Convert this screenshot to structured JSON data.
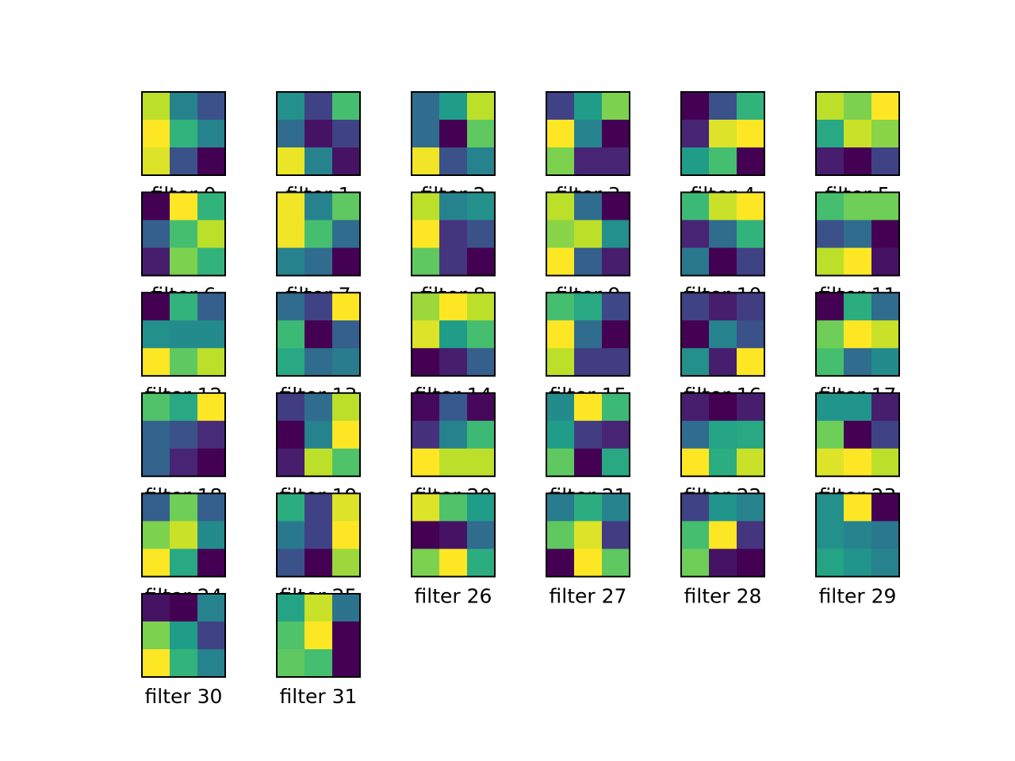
{
  "chart_data": {
    "type": "heatmap",
    "colormap": "viridis",
    "title": "",
    "grid": false,
    "axes_visible": false,
    "layout": {
      "rows": 6,
      "cols": 6
    },
    "filters": [
      {
        "label": "filter 0",
        "values": [
          [
            0.9,
            0.45,
            0.25
          ],
          [
            1.0,
            0.65,
            0.45
          ],
          [
            0.95,
            0.25,
            0.0
          ]
        ]
      },
      {
        "label": "filter 1",
        "values": [
          [
            0.5,
            0.2,
            0.7
          ],
          [
            0.35,
            0.05,
            0.2
          ],
          [
            0.97,
            0.45,
            0.05
          ]
        ]
      },
      {
        "label": "filter 2",
        "values": [
          [
            0.35,
            0.55,
            0.9
          ],
          [
            0.35,
            0.0,
            0.75
          ],
          [
            0.98,
            0.25,
            0.45
          ]
        ]
      },
      {
        "label": "filter 3",
        "values": [
          [
            0.2,
            0.55,
            0.8
          ],
          [
            1.0,
            0.45,
            0.0
          ],
          [
            0.8,
            0.1,
            0.1
          ]
        ]
      },
      {
        "label": "filter 4",
        "values": [
          [
            0.0,
            0.25,
            0.65
          ],
          [
            0.1,
            0.95,
            1.0
          ],
          [
            0.55,
            0.7,
            0.0
          ]
        ]
      },
      {
        "label": "filter 5",
        "values": [
          [
            0.9,
            0.8,
            1.0
          ],
          [
            0.6,
            0.92,
            0.82
          ],
          [
            0.08,
            0.0,
            0.2
          ]
        ]
      },
      {
        "label": "filter 6",
        "values": [
          [
            0.0,
            1.0,
            0.65
          ],
          [
            0.3,
            0.7,
            0.9
          ],
          [
            0.08,
            0.8,
            0.65
          ]
        ]
      },
      {
        "label": "filter 7",
        "values": [
          [
            0.98,
            0.45,
            0.75
          ],
          [
            0.98,
            0.7,
            0.35
          ],
          [
            0.45,
            0.35,
            0.0
          ]
        ]
      },
      {
        "label": "filter 8",
        "values": [
          [
            0.9,
            0.45,
            0.5
          ],
          [
            1.0,
            0.15,
            0.25
          ],
          [
            0.75,
            0.15,
            0.0
          ]
        ]
      },
      {
        "label": "filter 9",
        "values": [
          [
            0.9,
            0.35,
            0.0
          ],
          [
            0.82,
            0.9,
            0.5
          ],
          [
            1.0,
            0.3,
            0.08
          ]
        ]
      },
      {
        "label": "filter 10",
        "values": [
          [
            0.68,
            0.92,
            1.0
          ],
          [
            0.1,
            0.35,
            0.65
          ],
          [
            0.4,
            0.0,
            0.2
          ]
        ]
      },
      {
        "label": "filter 11",
        "values": [
          [
            0.7,
            0.78,
            0.78
          ],
          [
            0.25,
            0.35,
            0.0
          ],
          [
            0.9,
            1.0,
            0.05
          ]
        ]
      },
      {
        "label": "filter 12",
        "values": [
          [
            0.0,
            0.65,
            0.3
          ],
          [
            0.5,
            0.48,
            0.48
          ],
          [
            1.0,
            0.75,
            0.9
          ]
        ]
      },
      {
        "label": "filter 13",
        "values": [
          [
            0.35,
            0.2,
            1.0
          ],
          [
            0.68,
            0.0,
            0.3
          ],
          [
            0.6,
            0.35,
            0.42
          ]
        ]
      },
      {
        "label": "filter 14",
        "values": [
          [
            0.85,
            1.0,
            0.9
          ],
          [
            0.95,
            0.55,
            0.7
          ],
          [
            0.0,
            0.08,
            0.3
          ]
        ]
      },
      {
        "label": "filter 15",
        "values": [
          [
            0.7,
            0.6,
            0.22
          ],
          [
            1.0,
            0.35,
            0.0
          ],
          [
            0.9,
            0.18,
            0.18
          ]
        ]
      },
      {
        "label": "filter 16",
        "values": [
          [
            0.2,
            0.08,
            0.18
          ],
          [
            0.0,
            0.45,
            0.25
          ],
          [
            0.5,
            0.08,
            1.0
          ]
        ]
      },
      {
        "label": "filter 17",
        "values": [
          [
            0.0,
            0.62,
            0.35
          ],
          [
            0.78,
            1.0,
            0.92
          ],
          [
            0.7,
            0.35,
            0.48
          ]
        ]
      },
      {
        "label": "filter 18",
        "values": [
          [
            0.72,
            0.6,
            1.0
          ],
          [
            0.32,
            0.25,
            0.12
          ],
          [
            0.32,
            0.1,
            0.0
          ]
        ]
      },
      {
        "label": "filter 19",
        "values": [
          [
            0.18,
            0.35,
            0.9
          ],
          [
            0.0,
            0.45,
            1.0
          ],
          [
            0.08,
            0.9,
            0.72
          ]
        ]
      },
      {
        "label": "filter 20",
        "values": [
          [
            0.02,
            0.28,
            0.02
          ],
          [
            0.14,
            0.45,
            0.68
          ],
          [
            1.0,
            0.9,
            0.9
          ]
        ]
      },
      {
        "label": "filter 21",
        "values": [
          [
            0.48,
            1.0,
            0.68
          ],
          [
            0.55,
            0.18,
            0.1
          ],
          [
            0.75,
            0.0,
            0.6
          ]
        ]
      },
      {
        "label": "filter 22",
        "values": [
          [
            0.08,
            0.0,
            0.08
          ],
          [
            0.35,
            0.58,
            0.6
          ],
          [
            1.0,
            0.62,
            0.92
          ]
        ]
      },
      {
        "label": "filter 23",
        "values": [
          [
            0.52,
            0.52,
            0.08
          ],
          [
            0.78,
            0.0,
            0.2
          ],
          [
            0.95,
            1.0,
            0.9
          ]
        ]
      },
      {
        "label": "filter 24",
        "values": [
          [
            0.3,
            0.78,
            0.3
          ],
          [
            0.8,
            0.92,
            0.48
          ],
          [
            1.0,
            0.6,
            0.0
          ]
        ]
      },
      {
        "label": "filter 25",
        "values": [
          [
            0.62,
            0.2,
            0.95
          ],
          [
            0.4,
            0.2,
            1.0
          ],
          [
            0.25,
            0.0,
            0.85
          ]
        ]
      },
      {
        "label": "filter 26",
        "values": [
          [
            0.95,
            0.72,
            0.55
          ],
          [
            0.0,
            0.05,
            0.35
          ],
          [
            0.8,
            1.0,
            0.62
          ]
        ]
      },
      {
        "label": "filter 27",
        "values": [
          [
            0.42,
            0.62,
            0.45
          ],
          [
            0.75,
            0.95,
            0.18
          ],
          [
            0.0,
            1.0,
            0.75
          ]
        ]
      },
      {
        "label": "filter 28",
        "values": [
          [
            0.2,
            0.52,
            0.45
          ],
          [
            0.7,
            1.0,
            0.15
          ],
          [
            0.78,
            0.05,
            0.0
          ]
        ]
      },
      {
        "label": "filter 29",
        "values": [
          [
            0.5,
            1.0,
            0.0
          ],
          [
            0.5,
            0.45,
            0.4
          ],
          [
            0.58,
            0.52,
            0.45
          ]
        ]
      },
      {
        "label": "filter 30",
        "values": [
          [
            0.05,
            0.0,
            0.45
          ],
          [
            0.8,
            0.55,
            0.2
          ],
          [
            1.0,
            0.65,
            0.45
          ]
        ]
      },
      {
        "label": "filter 31",
        "values": [
          [
            0.58,
            0.92,
            0.38
          ],
          [
            0.72,
            1.0,
            0.0
          ],
          [
            0.75,
            0.7,
            0.0
          ]
        ]
      }
    ]
  }
}
